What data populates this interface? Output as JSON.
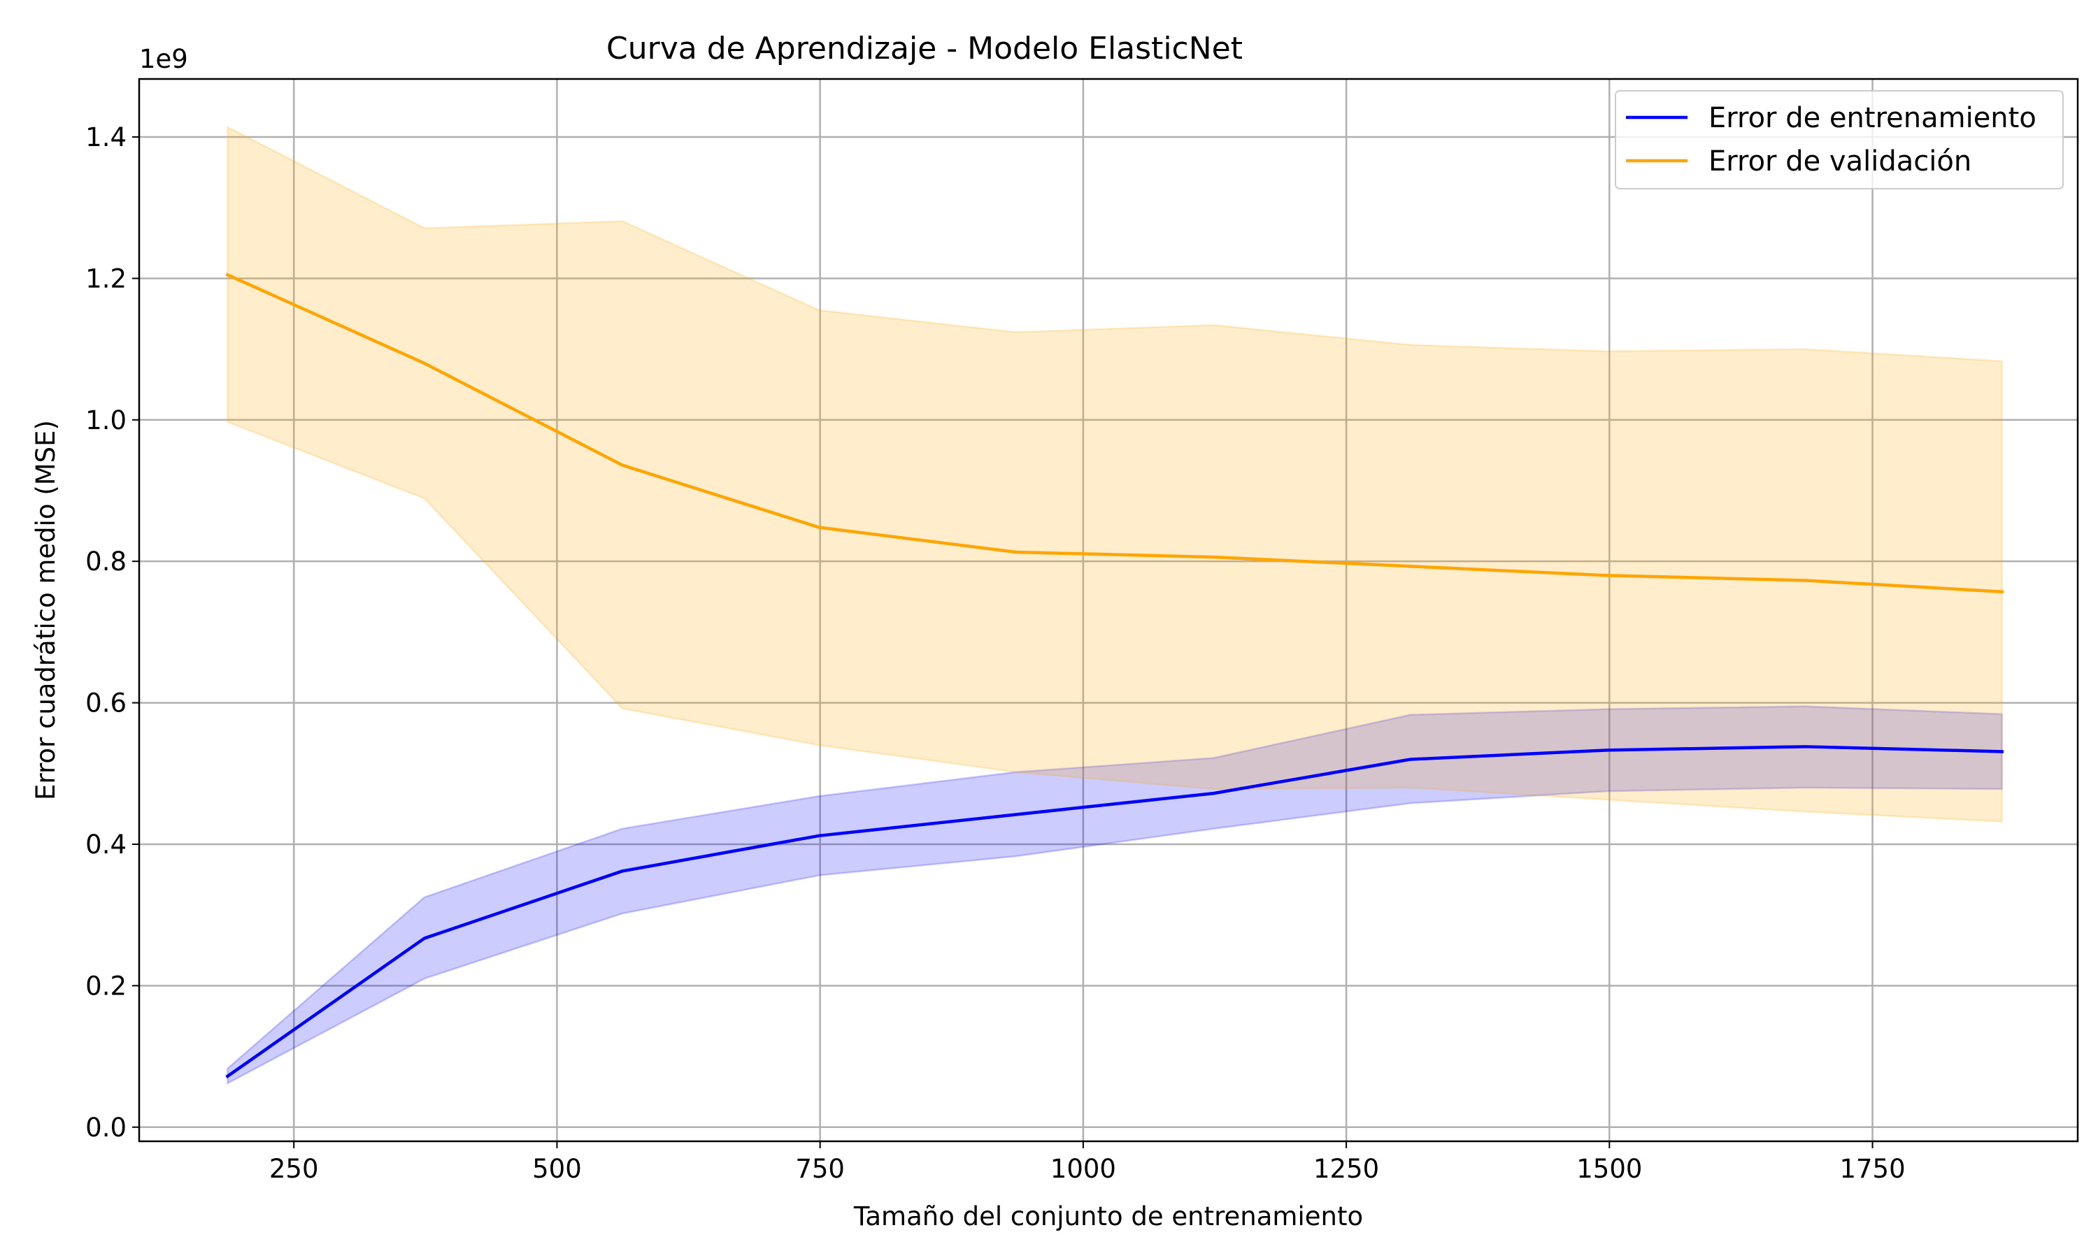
{
  "chart_data": {
    "type": "line",
    "title": "Curva de Aprendizaje - Modelo ElasticNet",
    "xlabel": "Tamaño del conjunto de entrenamiento",
    "ylabel": "Error cuadrático medio (MSE)",
    "y_offset_label": "1e9",
    "xlim": [
      103,
      1945
    ],
    "ylim": [
      -0.02,
      1.482
    ],
    "x_ticks": [
      250,
      500,
      750,
      1000,
      1250,
      1500,
      1750
    ],
    "x_tick_labels": [
      "250",
      "500",
      "750",
      "1000",
      "1250",
      "1500",
      "1750"
    ],
    "y_ticks": [
      0.0,
      0.2,
      0.4,
      0.6,
      0.8,
      1.0,
      1.2,
      1.4
    ],
    "y_tick_labels": [
      "0.0",
      "0.2",
      "0.4",
      "0.6",
      "0.8",
      "1.0",
      "1.2",
      "1.4"
    ],
    "grid": true,
    "legend_position": "top-right",
    "x": [
      187,
      374,
      562,
      749,
      936,
      1124,
      1311,
      1498,
      1686,
      1873
    ],
    "series": [
      {
        "name": "Error de entrenamiento",
        "color": "#0000ff",
        "band_color": "#0000ff",
        "values": [
          0.072,
          0.267,
          0.362,
          0.412,
          0.442,
          0.472,
          0.52,
          0.533,
          0.538,
          0.531
        ],
        "upper": [
          0.083,
          0.325,
          0.422,
          0.468,
          0.502,
          0.522,
          0.583,
          0.591,
          0.595,
          0.584
        ],
        "lower": [
          0.062,
          0.21,
          0.302,
          0.356,
          0.383,
          0.422,
          0.458,
          0.475,
          0.48,
          0.478
        ]
      },
      {
        "name": "Error de validación",
        "color": "#ffa500",
        "band_color": "#ffa500",
        "values": [
          1.205,
          1.08,
          0.936,
          0.848,
          0.813,
          0.806,
          0.793,
          0.78,
          0.773,
          0.757
        ],
        "upper": [
          1.414,
          1.271,
          1.281,
          1.155,
          1.124,
          1.134,
          1.106,
          1.097,
          1.1,
          1.083
        ],
        "lower": [
          0.997,
          0.889,
          0.592,
          0.54,
          0.502,
          0.478,
          0.48,
          0.463,
          0.446,
          0.432
        ]
      }
    ]
  }
}
